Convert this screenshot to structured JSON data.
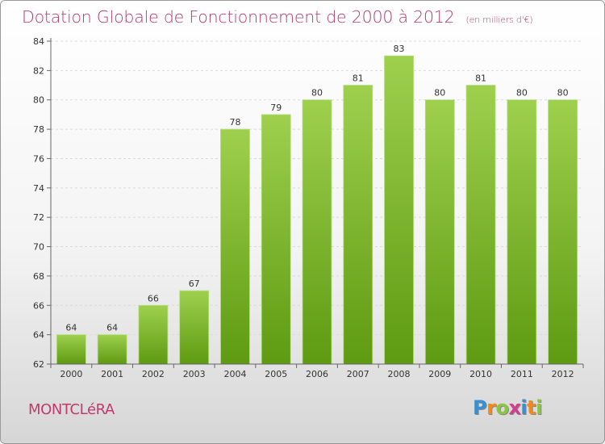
{
  "header": {
    "title": "Dotation Globale de Fonctionnement de 2000 à 2012",
    "subtitle": "(en milliers d'€)"
  },
  "footer": {
    "commune": "MONTCLéRA",
    "logo_letters": [
      "P",
      "r",
      "o",
      "x",
      "i",
      "t",
      "i"
    ],
    "logo_colors": [
      "#3a8fd0",
      "#f08a1c",
      "#8cc63f",
      "#d63c8c",
      "#3a8fd0",
      "#f08a1c",
      "#8cc63f"
    ]
  },
  "chart_data": {
    "type": "bar",
    "title": "Dotation Globale de Fonctionnement de 2000 à 2012",
    "subtitle": "(en milliers d'€)",
    "categories": [
      "2000",
      "2001",
      "2002",
      "2003",
      "2004",
      "2005",
      "2006",
      "2007",
      "2008",
      "2009",
      "2010",
      "2011",
      "2012"
    ],
    "values": [
      64,
      64,
      66,
      67,
      78,
      79,
      80,
      81,
      83,
      80,
      81,
      80,
      80
    ],
    "ylim": [
      62,
      84
    ],
    "yticks": [
      62,
      64,
      66,
      68,
      70,
      72,
      74,
      76,
      78,
      80,
      82,
      84
    ],
    "grid": true,
    "bar_color_top": "#9ed04e",
    "bar_color_bottom": "#5e9a12"
  }
}
